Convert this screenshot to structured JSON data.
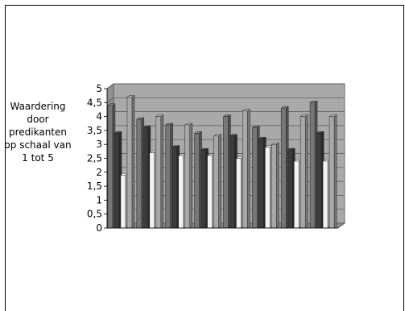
{
  "chart_data": {
    "type": "bar",
    "style": "3d-clustered",
    "ylabel": "Waardering door predikanten op schaal van 1 tot 5",
    "ylabel_lines": [
      "Waardering",
      "door",
      "predikanten",
      "op schaal van",
      "1 tot 5"
    ],
    "ylim": [
      0,
      5
    ],
    "yticks": [
      "0",
      "0,5",
      "1",
      "1,5",
      "2",
      "2,5",
      "3",
      "3,5",
      "4",
      "4,5",
      "5"
    ],
    "grid": true,
    "legend": "none",
    "categories": [
      "",
      "",
      "",
      "",
      "",
      "",
      "",
      ""
    ],
    "series": [
      {
        "color": "#777777",
        "values": [
          4.4,
          3.9,
          3.7,
          3.4,
          4.0,
          3.6,
          4.3,
          4.5
        ]
      },
      {
        "color": "#3c3c3c",
        "values": [
          3.4,
          3.6,
          2.9,
          2.8,
          3.3,
          3.2,
          2.8,
          3.4
        ]
      },
      {
        "color": "#f2f2f2",
        "values": [
          1.9,
          2.7,
          2.6,
          2.6,
          2.5,
          2.9,
          2.4,
          2.4
        ]
      },
      {
        "color": "#a8a8a8",
        "values": [
          4.7,
          4.0,
          3.7,
          3.3,
          4.2,
          3.0,
          4.0,
          4.0
        ]
      }
    ],
    "colors": {
      "wall": "#a9a9a9",
      "floor": "#8a8a8a",
      "grid": "#555555"
    }
  }
}
